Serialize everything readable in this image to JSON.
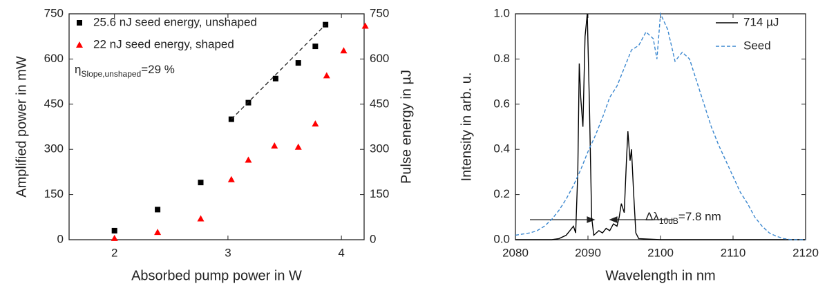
{
  "chart_data": [
    {
      "type": "scatter",
      "xlabel": "Absorbed pump power in W",
      "ylabel": "Amplified power in mW",
      "y2label": "Pulse energy in µJ",
      "xlim": [
        1.6,
        4.2
      ],
      "xticks": [
        2,
        3,
        4
      ],
      "ylim": [
        0,
        750
      ],
      "yticks": [
        0,
        150,
        300,
        450,
        600,
        750
      ],
      "y2lim": [
        0,
        750
      ],
      "y2ticks": [
        0,
        150,
        300,
        450,
        600,
        750
      ],
      "grid": false,
      "legend": "upper left",
      "series": [
        {
          "name": "25.6 nJ seed energy, unshaped",
          "color": "#000000",
          "marker": "square",
          "x": [
            2.0,
            2.38,
            2.76,
            3.03,
            3.18,
            3.42,
            3.62,
            3.77,
            3.86
          ],
          "values": [
            30,
            100,
            190,
            400,
            455,
            535,
            587,
            642,
            714
          ]
        },
        {
          "name": "22 nJ seed energy, shaped",
          "color": "#ff0000",
          "marker": "triangle",
          "x": [
            2.0,
            2.38,
            2.76,
            3.03,
            3.18,
            3.41,
            3.62,
            3.77,
            3.87,
            4.02,
            4.21
          ],
          "values": [
            5,
            25,
            70,
            200,
            265,
            312,
            308,
            385,
            545,
            628,
            710
          ]
        }
      ],
      "fit": {
        "x": [
          3.03,
          3.86
        ],
        "values": [
          400,
          714
        ]
      },
      "annotation": {
        "symbol": "η",
        "subscript": "Slope,unshaped",
        "text": "=29 %"
      }
    },
    {
      "type": "line",
      "xlabel": "Wavelength in nm",
      "ylabel": "Intensity in arb. u.",
      "xlim": [
        2080,
        2120
      ],
      "xticks": [
        2080,
        2090,
        2100,
        2110,
        2120
      ],
      "ylim": [
        0,
        1
      ],
      "yticks": [
        {
          "value": 0,
          "label": "0.0"
        },
        0.2,
        0.4,
        0.6,
        0.8,
        {
          "value": 1,
          "label": "1.0"
        }
      ],
      "grid": false,
      "legend": "upper right",
      "series": [
        {
          "name": "714 µJ",
          "color": "#000000",
          "dash": false,
          "x": [
            2080,
            2085,
            2086,
            2087,
            2087.5,
            2088,
            2088.3,
            2088.6,
            2088.8,
            2089,
            2089.3,
            2089.6,
            2089.9,
            2090.2,
            2090.5,
            2090.8,
            2091.5,
            2092,
            2092.5,
            2093,
            2093.5,
            2094,
            2094.3,
            2094.6,
            2095,
            2095.3,
            2095.5,
            2095.8,
            2096,
            2096.3,
            2096.6,
            2097,
            2100,
            2120
          ],
          "values": [
            0,
            0,
            0.005,
            0.02,
            0.04,
            0.06,
            0.03,
            0.3,
            0.78,
            0.63,
            0.5,
            0.9,
            1.0,
            0.6,
            0.1,
            0.02,
            0.04,
            0.03,
            0.05,
            0.04,
            0.07,
            0.06,
            0.1,
            0.16,
            0.12,
            0.35,
            0.48,
            0.35,
            0.4,
            0.2,
            0.03,
            0.005,
            0,
            0
          ]
        },
        {
          "name": "Seed",
          "color": "#3a87cf",
          "dash": true,
          "x": [
            2080,
            2081,
            2082,
            2083,
            2084,
            2085,
            2086,
            2087,
            2088,
            2089,
            2090,
            2091,
            2092,
            2093,
            2094,
            2095,
            2096,
            2097,
            2098,
            2099,
            2099.5,
            2100,
            2101,
            2102,
            2103,
            2104,
            2105,
            2106,
            2107,
            2108,
            2109,
            2110,
            2111,
            2112,
            2113,
            2114,
            2115,
            2116,
            2117,
            2118,
            2119,
            2120
          ],
          "values": [
            0.02,
            0.025,
            0.03,
            0.04,
            0.06,
            0.09,
            0.13,
            0.18,
            0.24,
            0.31,
            0.39,
            0.46,
            0.54,
            0.63,
            0.68,
            0.76,
            0.84,
            0.86,
            0.92,
            0.89,
            0.8,
            1.0,
            0.93,
            0.79,
            0.83,
            0.8,
            0.7,
            0.6,
            0.5,
            0.42,
            0.35,
            0.28,
            0.21,
            0.16,
            0.1,
            0.06,
            0.03,
            0.015,
            0.005,
            0,
            0,
            0
          ]
        }
      ],
      "annotation": {
        "symbol": "Δλ",
        "subscript": "10dB",
        "text": "=7.8 nm"
      }
    }
  ]
}
